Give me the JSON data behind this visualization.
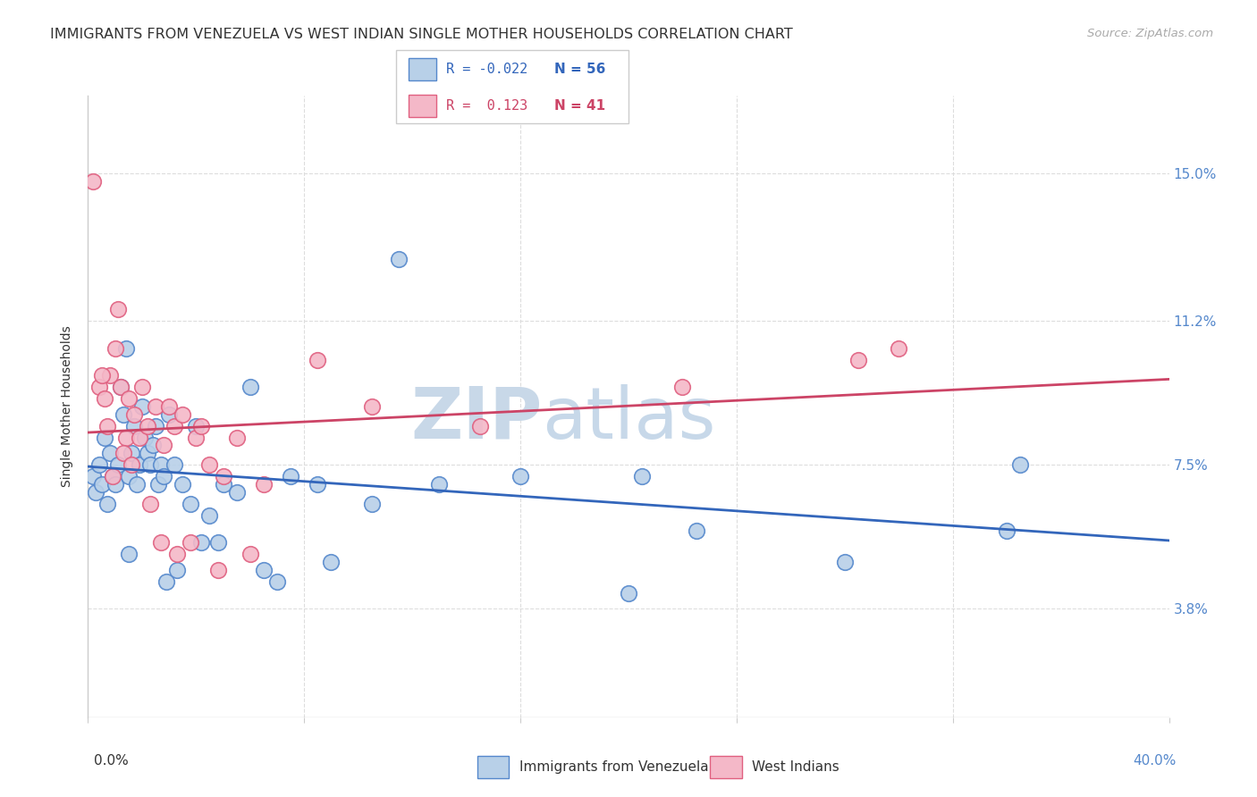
{
  "title": "IMMIGRANTS FROM VENEZUELA VS WEST INDIAN SINGLE MOTHER HOUSEHOLDS CORRELATION CHART",
  "source": "Source: ZipAtlas.com",
  "ylabel": "Single Mother Households",
  "yticks": [
    3.8,
    7.5,
    11.2,
    15.0
  ],
  "ytick_labels": [
    "3.8%",
    "7.5%",
    "11.2%",
    "15.0%"
  ],
  "xmin": 0.0,
  "xmax": 40.0,
  "ymin": 1.0,
  "ymax": 17.0,
  "legend_label_blue": "Immigrants from Venezuela",
  "legend_label_pink": "West Indians",
  "watermark_zip": "ZIP",
  "watermark_atlas": "atlas",
  "blue_color": "#b8d0e8",
  "pink_color": "#f4b8c8",
  "blue_edge_color": "#5588cc",
  "pink_edge_color": "#e06080",
  "blue_line_color": "#3366bb",
  "pink_line_color": "#cc4466",
  "title_color": "#333333",
  "source_color": "#aaaaaa",
  "ytick_color": "#5588cc",
  "xtick_color": "#333333",
  "xtick_right_color": "#5588cc",
  "grid_color": "#dddddd",
  "border_color": "#cccccc",
  "blue_scatter_x": [
    0.2,
    0.3,
    0.4,
    0.5,
    0.6,
    0.7,
    0.8,
    0.9,
    1.0,
    1.1,
    1.2,
    1.3,
    1.4,
    1.5,
    1.6,
    1.7,
    1.8,
    1.9,
    2.0,
    2.1,
    2.2,
    2.3,
    2.4,
    2.5,
    2.6,
    2.7,
    2.8,
    3.0,
    3.2,
    3.5,
    4.0,
    4.5,
    5.0,
    6.0,
    7.5,
    8.5,
    10.5,
    13.0,
    16.0,
    20.0,
    22.5,
    28.0,
    34.0,
    11.5,
    5.5,
    3.8,
    2.9,
    1.5,
    4.2,
    6.5,
    7.0,
    3.3,
    4.8,
    9.0,
    34.5,
    20.5
  ],
  "blue_scatter_y": [
    7.2,
    6.8,
    7.5,
    7.0,
    8.2,
    6.5,
    7.8,
    7.2,
    7.0,
    7.5,
    9.5,
    8.8,
    10.5,
    7.2,
    7.8,
    8.5,
    7.0,
    7.5,
    9.0,
    8.2,
    7.8,
    7.5,
    8.0,
    8.5,
    7.0,
    7.5,
    7.2,
    8.8,
    7.5,
    7.0,
    8.5,
    6.2,
    7.0,
    9.5,
    7.2,
    7.0,
    6.5,
    7.0,
    7.2,
    4.2,
    5.8,
    5.0,
    5.8,
    12.8,
    6.8,
    6.5,
    4.5,
    5.2,
    5.5,
    4.8,
    4.5,
    4.8,
    5.5,
    5.0,
    7.5,
    7.2
  ],
  "pink_scatter_x": [
    0.2,
    0.4,
    0.6,
    0.7,
    0.8,
    1.0,
    1.1,
    1.2,
    1.4,
    1.5,
    1.7,
    1.9,
    2.0,
    2.2,
    2.5,
    2.8,
    3.0,
    3.2,
    3.5,
    4.0,
    4.5,
    5.0,
    5.5,
    6.5,
    28.5,
    30.0,
    0.5,
    1.3,
    2.3,
    3.8,
    4.8,
    10.5,
    14.5,
    0.9,
    1.6,
    2.7,
    3.3,
    4.2,
    6.0,
    8.5,
    22.0
  ],
  "pink_scatter_y": [
    14.8,
    9.5,
    9.2,
    8.5,
    9.8,
    10.5,
    11.5,
    9.5,
    8.2,
    9.2,
    8.8,
    8.2,
    9.5,
    8.5,
    9.0,
    8.0,
    9.0,
    8.5,
    8.8,
    8.2,
    7.5,
    7.2,
    8.2,
    7.0,
    10.2,
    10.5,
    9.8,
    7.8,
    6.5,
    5.5,
    4.8,
    9.0,
    8.5,
    7.2,
    7.5,
    5.5,
    5.2,
    8.5,
    5.2,
    10.2,
    9.5
  ]
}
